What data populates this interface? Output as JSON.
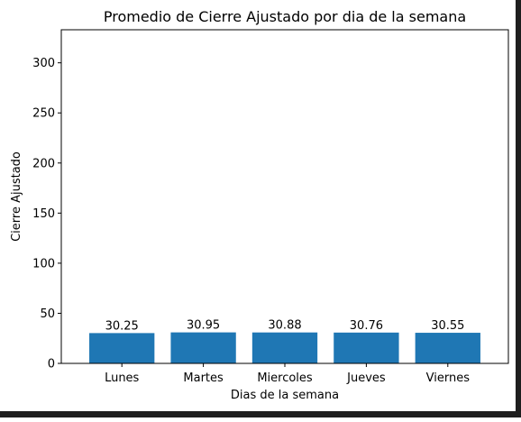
{
  "colors": {
    "bar": "#1f77b4",
    "axis": "#000000",
    "background": "#ffffff",
    "window_edge": "#1e1e1e"
  },
  "chart_data": {
    "type": "bar",
    "title": "Promedio de Cierre Ajustado por dia de la semana",
    "xlabel": "Dias de la semana",
    "ylabel": "Cierre Ajustado",
    "categories": [
      "Lunes",
      "Martes",
      "Miercoles",
      "Jueves",
      "Viernes"
    ],
    "values": [
      30.25,
      30.95,
      30.88,
      30.76,
      30.55
    ],
    "data_labels": [
      "30.25",
      "30.95",
      "30.88",
      "30.76",
      "30.55"
    ],
    "yticks": [
      0,
      50,
      100,
      150,
      200,
      250,
      300
    ],
    "ylim": [
      0,
      333
    ],
    "grid": false,
    "legend": "none"
  }
}
